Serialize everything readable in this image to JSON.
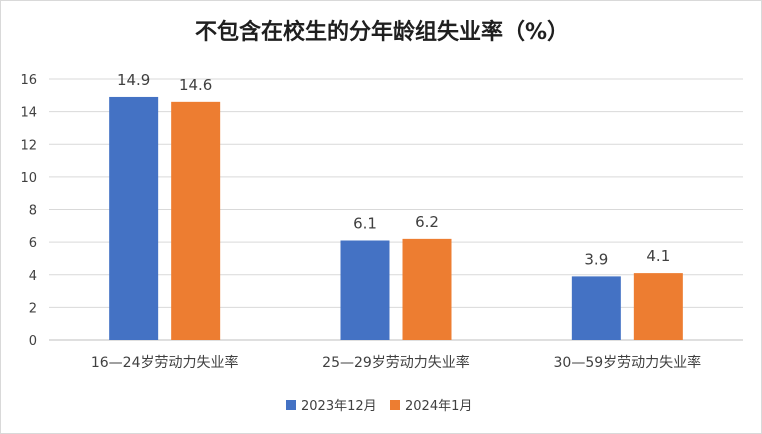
{
  "chart_data": {
    "type": "bar",
    "title": "不包含在校生的分年龄组失业率（%）",
    "categories": [
      "16—24岁劳动力失业率",
      "25—29岁劳动力失业率",
      "30—59岁劳动力失业率"
    ],
    "series": [
      {
        "name": "2023年12月",
        "values": [
          14.9,
          6.1,
          3.9
        ],
        "color": "#4472c4"
      },
      {
        "name": "2024年1月",
        "values": [
          14.6,
          6.2,
          4.1
        ],
        "color": "#ed7d31"
      }
    ],
    "ylim": [
      0,
      16
    ],
    "yticks": [
      0,
      2,
      4,
      6,
      8,
      10,
      12,
      14,
      16
    ],
    "grid": true,
    "legend": "bottom",
    "data_labels": true
  }
}
